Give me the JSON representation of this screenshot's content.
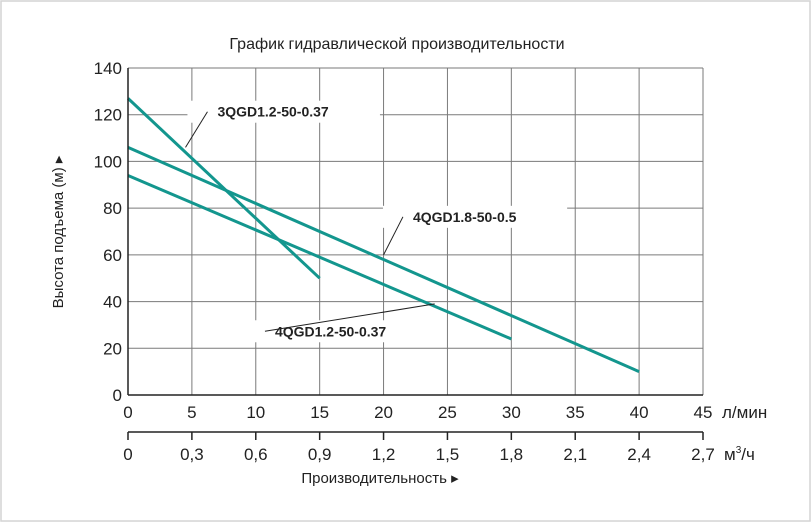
{
  "chart_data": {
    "type": "line",
    "title": "График гидравлической производительности",
    "ylabel": "Высота подъема (м) ▸",
    "xlabel": "Производительность ▸",
    "x_unit": "л/мин",
    "x2_unit_base": "м",
    "x2_unit_sup": "3",
    "x2_unit_tail": "/ч",
    "xlim": [
      0,
      45
    ],
    "ylim": [
      0,
      140
    ],
    "grid": true,
    "x_ticks": [
      "0",
      "5",
      "10",
      "15",
      "20",
      "25",
      "30",
      "35",
      "40",
      "45"
    ],
    "x2_ticks": [
      "0",
      "0,3",
      "0,6",
      "0,9",
      "1,2",
      "1,5",
      "1,8",
      "2,1",
      "2,4",
      "2,7"
    ],
    "y_ticks": [
      "0",
      "20",
      "40",
      "60",
      "80",
      "100",
      "120",
      "140"
    ],
    "series": [
      {
        "name": "3QGD1.2-50-0.37",
        "x": [
          0,
          15
        ],
        "y": [
          127,
          50
        ]
      },
      {
        "name": "4QGD1.8-50-0.5",
        "x": [
          0,
          40
        ],
        "y": [
          106,
          10
        ]
      },
      {
        "name": "4QGD1.2-50-0.37",
        "x": [
          0,
          30
        ],
        "y": [
          94,
          24
        ]
      }
    ],
    "annotations": [
      {
        "text": "3QGD1.2-50-0.37",
        "series": 0,
        "point": [
          4.5,
          106
        ],
        "label_at": [
          7,
          120
        ],
        "anchor": "left"
      },
      {
        "text": "4QGD1.8-50-0.5",
        "series": 1,
        "point": [
          20,
          60
        ],
        "label_at": [
          22.3,
          75
        ],
        "anchor": "left"
      },
      {
        "text": "4QGD1.2-50-0.37",
        "series": 2,
        "point": [
          24,
          39
        ],
        "label_at": [
          11.5,
          26
        ],
        "anchor": "left"
      }
    ],
    "colors": {
      "line": "#13968e",
      "grid": "#7a7a7a",
      "axis": "#222222",
      "frame": "#d4d4d4"
    }
  }
}
